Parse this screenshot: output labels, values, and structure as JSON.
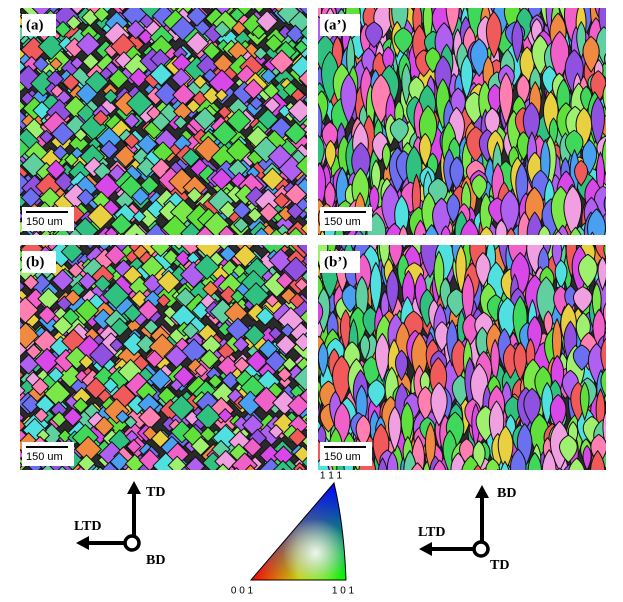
{
  "panels": [
    {
      "label": "(a)",
      "scale_bar": "150 um"
    },
    {
      "label": "(a’)",
      "scale_bar": "150 um"
    },
    {
      "label": "(b)",
      "scale_bar": "150 um"
    },
    {
      "label": "(b’)",
      "scale_bar": "150 um"
    }
  ],
  "axes_left": {
    "up": "TD",
    "left": "LTD",
    "normal": "BD"
  },
  "axes_right": {
    "up": "BD",
    "left": "LTD",
    "normal": "TD"
  },
  "ipf_legend": {
    "top": "1 1 1",
    "bottom_left": "0 0 1",
    "bottom_right": "1 0 1"
  }
}
